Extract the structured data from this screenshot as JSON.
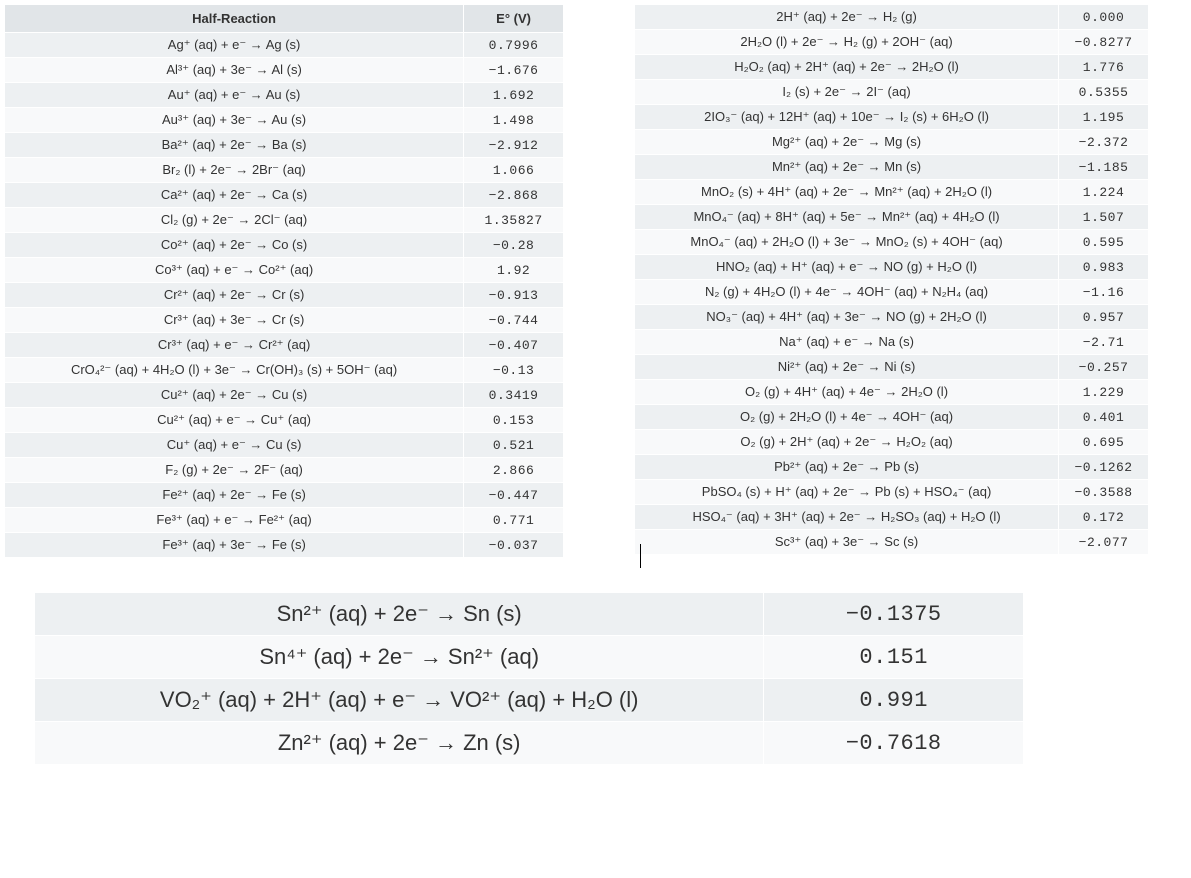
{
  "colors": {
    "header_bg": "#e1e5e8",
    "row_odd_bg": "#edf0f2",
    "row_even_bg": "#f8f9fa",
    "text": "#333333",
    "border": "#ffffff",
    "page_bg": "#ffffff"
  },
  "typography": {
    "body_font": "Verdana, Geneva, sans-serif",
    "mono_font": "Courier New, monospace",
    "small_pt": 13,
    "large_pt": 22
  },
  "left_table": {
    "type": "table",
    "columns": [
      "Half-Reaction",
      "E° (V)"
    ],
    "rows": [
      {
        "reaction": "Ag⁺ (aq) + e⁻ → Ag (s)",
        "e": "0.7996"
      },
      {
        "reaction": "Al³⁺ (aq) + 3e⁻ → Al (s)",
        "e": "−1.676"
      },
      {
        "reaction": "Au⁺ (aq) + e⁻ → Au (s)",
        "e": "1.692"
      },
      {
        "reaction": "Au³⁺ (aq) + 3e⁻ → Au (s)",
        "e": "1.498"
      },
      {
        "reaction": "Ba²⁺ (aq) + 2e⁻ → Ba (s)",
        "e": "−2.912"
      },
      {
        "reaction": "Br₂ (l) + 2e⁻ → 2Br⁻ (aq)",
        "e": "1.066"
      },
      {
        "reaction": "Ca²⁺ (aq) + 2e⁻ → Ca (s)",
        "e": "−2.868"
      },
      {
        "reaction": "Cl₂ (g) + 2e⁻ → 2Cl⁻ (aq)",
        "e": "1.35827"
      },
      {
        "reaction": "Co²⁺ (aq) + 2e⁻ → Co (s)",
        "e": "−0.28"
      },
      {
        "reaction": "Co³⁺ (aq) + e⁻ → Co²⁺ (aq)",
        "e": "1.92"
      },
      {
        "reaction": "Cr²⁺ (aq) + 2e⁻ → Cr (s)",
        "e": "−0.913"
      },
      {
        "reaction": "Cr³⁺ (aq) + 3e⁻ → Cr (s)",
        "e": "−0.744"
      },
      {
        "reaction": "Cr³⁺ (aq) + e⁻ → Cr²⁺ (aq)",
        "e": "−0.407"
      },
      {
        "reaction": "CrO₄²⁻ (aq) + 4H₂O (l) + 3e⁻ → Cr(OH)₃ (s) + 5OH⁻ (aq)",
        "e": "−0.13"
      },
      {
        "reaction": "Cu²⁺ (aq) + 2e⁻ → Cu (s)",
        "e": "0.3419"
      },
      {
        "reaction": "Cu²⁺ (aq) + e⁻ → Cu⁺ (aq)",
        "e": "0.153"
      },
      {
        "reaction": "Cu⁺ (aq) + e⁻ → Cu (s)",
        "e": "0.521"
      },
      {
        "reaction": "F₂ (g) + 2e⁻ → 2F⁻ (aq)",
        "e": "2.866"
      },
      {
        "reaction": "Fe²⁺ (aq) + 2e⁻ → Fe (s)",
        "e": "−0.447"
      },
      {
        "reaction": "Fe³⁺ (aq) + e⁻ → Fe²⁺ (aq)",
        "e": "0.771"
      },
      {
        "reaction": "Fe³⁺ (aq) + 3e⁻ → Fe (s)",
        "e": "−0.037"
      }
    ]
  },
  "right_table": {
    "type": "table",
    "rows": [
      {
        "reaction": "2H⁺ (aq) + 2e⁻ → H₂ (g)",
        "e": "0.000"
      },
      {
        "reaction": "2H₂O (l) + 2e⁻ → H₂ (g) + 2OH⁻ (aq)",
        "e": "−0.8277"
      },
      {
        "reaction": "H₂O₂ (aq) + 2H⁺ (aq) + 2e⁻ → 2H₂O (l)",
        "e": "1.776"
      },
      {
        "reaction": "I₂ (s) + 2e⁻ → 2I⁻ (aq)",
        "e": "0.5355"
      },
      {
        "reaction": "2IO₃⁻ (aq) + 12H⁺ (aq) + 10e⁻ → I₂ (s) + 6H₂O (l)",
        "e": "1.195"
      },
      {
        "reaction": "Mg²⁺ (aq) + 2e⁻ → Mg (s)",
        "e": "−2.372"
      },
      {
        "reaction": "Mn²⁺ (aq) + 2e⁻ → Mn (s)",
        "e": "−1.185"
      },
      {
        "reaction": "MnO₂ (s) + 4H⁺ (aq) + 2e⁻ → Mn²⁺ (aq) + 2H₂O (l)",
        "e": "1.224"
      },
      {
        "reaction": "MnO₄⁻ (aq) + 8H⁺ (aq) + 5e⁻ → Mn²⁺ (aq) + 4H₂O (l)",
        "e": "1.507"
      },
      {
        "reaction": "MnO₄⁻ (aq) + 2H₂O (l) + 3e⁻ → MnO₂ (s) + 4OH⁻ (aq)",
        "e": "0.595"
      },
      {
        "reaction": "HNO₂ (aq) + H⁺ (aq) + e⁻ → NO (g) + H₂O (l)",
        "e": "0.983"
      },
      {
        "reaction": "N₂ (g) + 4H₂O (l) + 4e⁻ → 4OH⁻ (aq) + N₂H₄ (aq)",
        "e": "−1.16"
      },
      {
        "reaction": "NO₃⁻ (aq) + 4H⁺ (aq) + 3e⁻ → NO (g) + 2H₂O (l)",
        "e": "0.957"
      },
      {
        "reaction": "Na⁺ (aq) + e⁻ → Na (s)",
        "e": "−2.71"
      },
      {
        "reaction": "Ni²⁺ (aq) + 2e⁻ → Ni (s)",
        "e": "−0.257"
      },
      {
        "reaction": "O₂ (g) + 4H⁺ (aq) + 4e⁻ → 2H₂O (l)",
        "e": "1.229"
      },
      {
        "reaction": "O₂ (g) + 2H₂O (l) + 4e⁻ → 4OH⁻ (aq)",
        "e": "0.401"
      },
      {
        "reaction": "O₂ (g) + 2H⁺ (aq) + 2e⁻ → H₂O₂ (aq)",
        "e": "0.695"
      },
      {
        "reaction": "Pb²⁺ (aq) + 2e⁻ → Pb (s)",
        "e": "−0.1262"
      },
      {
        "reaction": "PbSO₄ (s) + H⁺ (aq) + 2e⁻ → Pb (s) + HSO₄⁻ (aq)",
        "e": "−0.3588"
      },
      {
        "reaction": "HSO₄⁻ (aq) + 3H⁺ (aq) + 2e⁻ → H₂SO₃ (aq) + H₂O (l)",
        "e": "0.172"
      },
      {
        "reaction": "Sc³⁺ (aq) + 3e⁻ → Sc (s)",
        "e": "−2.077"
      }
    ]
  },
  "bottom_table": {
    "type": "table",
    "rows": [
      {
        "reaction": "Sn²⁺ (aq) + 2e⁻ → Sn (s)",
        "e": "−0.1375"
      },
      {
        "reaction": "Sn⁴⁺ (aq) + 2e⁻ → Sn²⁺ (aq)",
        "e": "0.151"
      },
      {
        "reaction": "VO₂⁺ (aq) + 2H⁺ (aq) + e⁻ → VO²⁺ (aq) + H₂O (l)",
        "e": "0.991"
      },
      {
        "reaction": "Zn²⁺ (aq) + 2e⁻ → Zn (s)",
        "e": "−0.7618"
      }
    ]
  }
}
